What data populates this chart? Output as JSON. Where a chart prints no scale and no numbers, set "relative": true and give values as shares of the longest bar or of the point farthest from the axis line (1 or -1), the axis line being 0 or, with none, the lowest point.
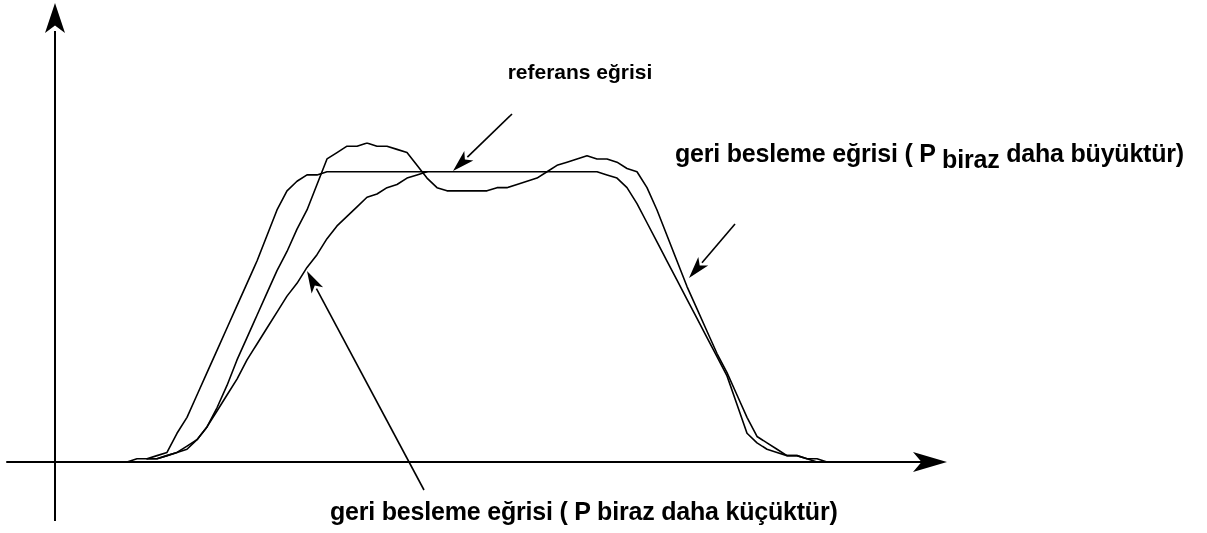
{
  "chart_data": {
    "type": "line",
    "relative": true,
    "marker": "none",
    "categories": [
      null,
      null,
      null,
      null,
      null,
      null,
      null,
      null,
      null,
      null,
      null,
      null,
      null,
      null,
      null,
      null,
      null,
      null,
      null,
      null,
      null,
      null,
      null,
      null,
      null,
      null,
      null,
      null,
      null,
      null,
      null,
      null,
      null,
      null,
      null,
      null,
      null,
      null,
      null,
      null,
      null,
      null,
      null,
      null,
      null,
      null,
      null,
      null,
      null,
      null,
      null,
      null,
      null,
      null,
      null,
      null,
      null,
      null,
      null,
      null,
      null,
      null,
      null,
      null,
      null,
      null,
      null,
      null,
      null,
      null,
      null,
      null,
      null,
      null,
      null,
      null,
      null,
      null,
      null,
      null,
      null,
      null,
      null,
      null,
      null,
      null,
      null,
      null,
      null,
      null,
      null,
      null,
      null
    ],
    "series": [
      {
        "color": "#000000",
        "values": [
          null,
          null,
          null,
          null,
          null,
          null,
          null,
          null,
          null,
          null,
          0,
          0,
          0,
          0.01,
          0.01,
          0.02,
          0.03,
          0.09,
          0.14,
          0.21,
          0.28,
          0.35,
          0.42,
          0.49,
          0.56,
          0.63,
          0.71,
          0.79,
          0.85,
          0.88,
          0.9,
          0.9,
          0.91,
          0.91,
          0.91,
          0.91,
          0.91,
          0.91,
          0.91,
          0.91,
          0.91,
          0.91,
          0.91,
          0.91,
          0.91,
          0.91,
          0.91,
          0.91,
          0.91,
          0.91,
          0.91,
          0.91,
          0.91,
          0.91,
          0.91,
          0.91,
          0.91,
          0.91,
          0.91,
          0.91,
          0.9,
          0.89,
          0.86,
          0.81,
          0.75,
          0.69,
          0.63,
          0.57,
          0.51,
          0.45,
          0.39,
          0.33,
          0.27,
          0.18,
          0.09,
          0.06,
          0.04,
          0.03,
          0.02,
          0.02,
          0.01,
          0,
          null,
          null,
          null,
          null,
          null,
          null,
          null,
          null,
          null,
          null,
          null
        ]
      },
      {
        "name": "geri besleme eğrisi ( P $_{biraz}$ daha büyüktür)",
        "color": "#000000",
        "values": [
          null,
          null,
          null,
          null,
          null,
          null,
          null,
          null,
          null,
          null,
          null,
          null,
          null,
          null,
          0.01,
          0.01,
          0.02,
          0.03,
          0.05,
          0.07,
          0.11,
          0.17,
          0.24,
          0.32,
          0.39,
          0.46,
          0.53,
          0.6,
          0.66,
          0.73,
          0.79,
          0.87,
          0.95,
          0.97,
          0.99,
          0.99,
          1,
          0.99,
          0.99,
          0.98,
          0.97,
          0.93,
          0.89,
          0.86,
          0.85,
          0.85,
          0.85,
          0.85,
          0.85,
          0.86,
          0.86,
          0.87,
          0.88,
          0.89,
          0.91,
          0.93,
          0.94,
          0.95,
          0.96,
          0.95,
          0.95,
          0.94,
          0.92,
          0.91,
          0.86,
          0.79,
          0.71,
          0.63,
          0.55,
          0.48,
          0.41,
          0.34,
          0.28,
          0.21,
          0.14,
          0.08,
          0.06,
          0.04,
          0.02,
          0.02,
          0.01,
          0.01,
          0,
          null,
          null,
          null,
          null,
          null,
          null,
          null,
          null,
          null,
          null
        ]
      },
      {
        "name": "geri besleme eğrisi ( P biraz daha küçüktür)",
        "color": "#000000",
        "values": [
          null,
          null,
          null,
          null,
          null,
          null,
          null,
          null,
          null,
          null,
          null,
          null,
          null,
          null,
          0.01,
          0.01,
          0.02,
          0.03,
          0.04,
          0.07,
          0.11,
          0.16,
          0.21,
          0.26,
          0.32,
          0.37,
          0.42,
          0.47,
          0.52,
          0.56,
          0.61,
          0.65,
          0.7,
          0.74,
          0.77,
          0.8,
          0.83,
          0.84,
          0.86,
          0.87,
          0.89,
          0.9,
          0.91,
          null,
          null,
          null,
          null,
          null,
          null,
          null,
          null,
          null,
          null,
          null,
          null,
          null,
          null,
          null,
          null,
          null,
          null,
          null,
          null,
          null,
          null,
          null,
          null,
          null,
          null,
          null,
          null,
          null,
          null,
          null,
          null,
          null,
          null,
          null,
          null,
          null,
          null,
          null,
          null,
          null,
          null,
          null,
          null,
          null,
          null,
          null,
          null,
          null,
          null
        ]
      }
    ],
    "annotations": [
      "referans eğrisi"
    ]
  }
}
